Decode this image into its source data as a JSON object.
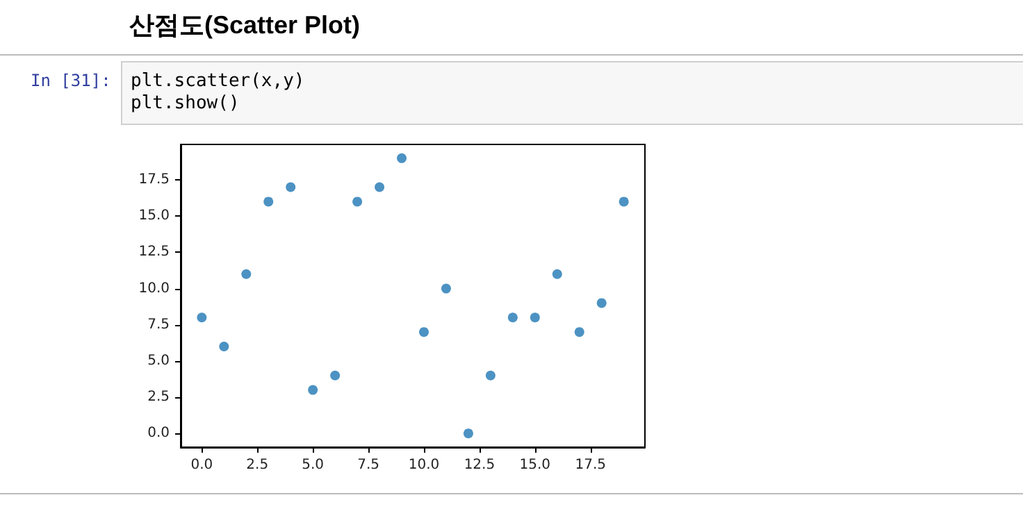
{
  "chart_data": {
    "type": "scatter",
    "title": "산점도(Scatter Plot)",
    "annotations": [
      "In [31]:",
      "plt.scatter(x,y)",
      "plt.show()"
    ],
    "x": [
      0,
      1,
      2,
      3,
      4,
      5,
      6,
      7,
      8,
      9,
      10,
      11,
      12,
      13,
      14,
      15,
      16,
      17,
      18,
      19
    ],
    "series": [
      {
        "color": "#1f77b4",
        "values": [
          8,
          6,
          11,
          16,
          17,
          3,
          4,
          16,
          17,
          19,
          7,
          10,
          0,
          4,
          8,
          8,
          11,
          7,
          9,
          16
        ]
      }
    ],
    "xlim": [
      -0.95,
      19.95
    ],
    "xticks": [
      {
        "value": 0,
        "label": "0.0"
      },
      2.5,
      {
        "value": 5,
        "label": "5.0"
      },
      7.5,
      {
        "value": 10,
        "label": "10.0"
      },
      12.5,
      {
        "value": 15,
        "label": "15.0"
      },
      17.5
    ],
    "ylim": [
      -0.95,
      19.95
    ],
    "yticks": [
      {
        "value": 0,
        "label": "0.0"
      },
      2.5,
      {
        "value": 5,
        "label": "5.0"
      },
      7.5,
      {
        "value": 10,
        "label": "10.0"
      },
      12.5,
      {
        "value": 15,
        "label": "15.0"
      },
      17.5
    ],
    "grid": false,
    "marker": "circle"
  }
}
